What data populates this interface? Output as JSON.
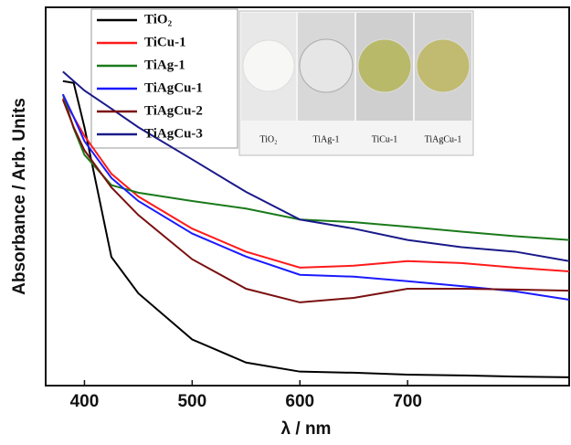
{
  "chart_data": {
    "type": "line",
    "xlabel": "λ / nm",
    "ylabel": "Absorbance / Arb. Units",
    "x": [
      380,
      390,
      400,
      425,
      450,
      500,
      550,
      600,
      650,
      700,
      750,
      800,
      850
    ],
    "xlim": [
      364,
      850
    ],
    "xticks": [
      400,
      500,
      600,
      700
    ],
    "ylim": [
      0,
      100
    ],
    "legend": "upper left",
    "inset_labels": [
      "TiO₂",
      "TiAg-1",
      "TiCu-1",
      "TiAgCu-1"
    ],
    "series": [
      {
        "name": "TiO₂",
        "color": "#000000",
        "values": [
          80.5,
          80,
          68.3,
          34,
          24.4,
          12.2,
          6.1,
          3.7,
          3.4,
          2.9,
          2.7,
          2.4,
          2.2
        ]
      },
      {
        "name": "TiCu-1",
        "color": "#ff1a1a",
        "values": [
          76,
          71,
          66,
          56,
          50,
          41.5,
          35.4,
          31.2,
          31.7,
          32.9,
          32.4,
          31.2,
          30.2
        ]
      },
      {
        "name": "TiAg-1",
        "color": "#1a7a1a",
        "values": [
          77,
          68,
          61,
          53,
          51,
          48.8,
          46.8,
          43.9,
          43.2,
          42,
          40.7,
          39.5,
          38.5
        ]
      },
      {
        "name": "TiAgCu-1",
        "color": "#1a1aff",
        "values": [
          77,
          71,
          64.6,
          54.9,
          48.8,
          40.2,
          34.1,
          29.3,
          28.8,
          27.6,
          26.3,
          24.9,
          22.7
        ]
      },
      {
        "name": "TiAgCu-2",
        "color": "#7a1010",
        "values": [
          75.6,
          68.3,
          62.2,
          52.4,
          45.1,
          33.4,
          25.6,
          22,
          23.2,
          25.6,
          25.6,
          25.4,
          25.1
        ]
      },
      {
        "name": "TiAgCu-3",
        "color": "#1a1a8a",
        "values": [
          83,
          80.5,
          78,
          73.2,
          68.3,
          59.8,
          51.2,
          43.9,
          41.5,
          38.5,
          36.6,
          35.4,
          32.9
        ]
      }
    ]
  }
}
